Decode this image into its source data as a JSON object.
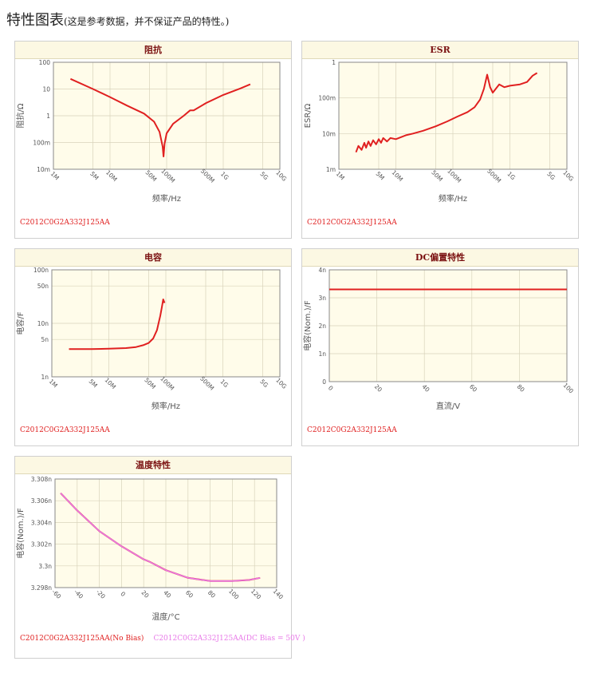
{
  "page": {
    "title": "特性图表",
    "subtitle": "(这是参考数据，并不保证产品的特性。)"
  },
  "chart_data": [
    {
      "id": "impedance",
      "type": "line",
      "title": "阻抗",
      "xlabel": "频率/Hz",
      "ylabel": "阻抗/Ω",
      "xscale": "log",
      "yscale": "log",
      "xlim": [
        1000000,
        10000000000
      ],
      "ylim": [
        0.01,
        100
      ],
      "xticks": [
        {
          "v": 1000000,
          "label": "1M"
        },
        {
          "v": 5000000,
          "label": "5M"
        },
        {
          "v": 10000000,
          "label": "10M"
        },
        {
          "v": 50000000,
          "label": "50M"
        },
        {
          "v": 100000000,
          "label": "100M"
        },
        {
          "v": 500000000,
          "label": "500M"
        },
        {
          "v": 1000000000,
          "label": "1G"
        },
        {
          "v": 5000000000,
          "label": "5G"
        },
        {
          "v": 10000000000,
          "label": "10G"
        }
      ],
      "yticks": [
        {
          "v": 100,
          "label": "100"
        },
        {
          "v": 10,
          "label": "10"
        },
        {
          "v": 1,
          "label": "1"
        },
        {
          "v": 0.1,
          "label": "100m"
        },
        {
          "v": 0.01,
          "label": "10m"
        }
      ],
      "grid": true,
      "series": [
        {
          "name": "C2012C0G2A332J125AA",
          "color": "#e02020",
          "x": [
            2000000,
            5000000,
            10000000,
            20000000,
            40000000,
            60000000,
            75000000,
            85000000,
            88000000,
            92000000,
            100000000,
            130000000,
            200000000,
            260000000,
            300000000,
            500000000,
            1000000000,
            2000000000,
            3000000000
          ],
          "y": [
            24,
            10,
            5,
            2.4,
            1.2,
            0.6,
            0.25,
            0.07,
            0.03,
            0.09,
            0.22,
            0.5,
            1.0,
            1.6,
            1.6,
            3.0,
            6.0,
            10.5,
            15
          ]
        }
      ],
      "legend": [
        {
          "text": "C2012C0G2A332J125AA",
          "color": "#e02020"
        }
      ]
    },
    {
      "id": "esr",
      "type": "line",
      "title": "ESR",
      "xlabel": "频率/Hz",
      "ylabel": "ESR/Ω",
      "xscale": "log",
      "yscale": "log",
      "xlim": [
        1000000,
        10000000000
      ],
      "ylim": [
        0.001,
        1
      ],
      "xticks": [
        {
          "v": 1000000,
          "label": "1M"
        },
        {
          "v": 5000000,
          "label": "5M"
        },
        {
          "v": 10000000,
          "label": "10M"
        },
        {
          "v": 50000000,
          "label": "50M"
        },
        {
          "v": 100000000,
          "label": "100M"
        },
        {
          "v": 500000000,
          "label": "500M"
        },
        {
          "v": 1000000000,
          "label": "1G"
        },
        {
          "v": 5000000000,
          "label": "5G"
        },
        {
          "v": 10000000000,
          "label": "10G"
        }
      ],
      "yticks": [
        {
          "v": 1,
          "label": "1"
        },
        {
          "v": 0.1,
          "label": "100m"
        },
        {
          "v": 0.01,
          "label": "10m"
        },
        {
          "v": 0.001,
          "label": "1m"
        }
      ],
      "grid": true,
      "series": [
        {
          "name": "C2012C0G2A332J125AA",
          "color": "#e02020",
          "x": [
            2000000,
            2200000,
            2500000,
            2800000,
            3000000,
            3300000,
            3600000,
            4000000,
            4500000,
            5000000,
            5500000,
            6000000,
            7000000,
            8000000,
            10000000,
            15000000,
            20000000,
            30000000,
            50000000,
            80000000,
            120000000,
            180000000,
            240000000,
            300000000,
            350000000,
            400000000,
            450000000,
            500000000,
            550000000,
            650000000,
            800000000,
            1000000000,
            1500000000,
            2000000000,
            2500000000,
            3000000000
          ],
          "y": [
            0.003,
            0.0045,
            0.0035,
            0.0055,
            0.004,
            0.006,
            0.0045,
            0.0065,
            0.005,
            0.007,
            0.0055,
            0.0075,
            0.006,
            0.0075,
            0.007,
            0.009,
            0.01,
            0.012,
            0.016,
            0.022,
            0.03,
            0.04,
            0.055,
            0.09,
            0.18,
            0.45,
            0.2,
            0.14,
            0.17,
            0.24,
            0.2,
            0.22,
            0.24,
            0.28,
            0.42,
            0.5
          ]
        }
      ],
      "legend": [
        {
          "text": "C2012C0G2A332J125AA",
          "color": "#e02020"
        }
      ]
    },
    {
      "id": "capacitance",
      "type": "line",
      "title": "电容",
      "xlabel": "频率/Hz",
      "ylabel": "电容/F",
      "xscale": "log",
      "yscale": "log",
      "xlim": [
        1000000,
        10000000000
      ],
      "ylim": [
        1e-09,
        1e-07
      ],
      "xticks": [
        {
          "v": 1000000,
          "label": "1M"
        },
        {
          "v": 5000000,
          "label": "5M"
        },
        {
          "v": 10000000,
          "label": "10M"
        },
        {
          "v": 50000000,
          "label": "50M"
        },
        {
          "v": 100000000,
          "label": "100M"
        },
        {
          "v": 500000000,
          "label": "500M"
        },
        {
          "v": 1000000000,
          "label": "1G"
        },
        {
          "v": 5000000000,
          "label": "5G"
        },
        {
          "v": 10000000000,
          "label": "10G"
        }
      ],
      "yticks": [
        {
          "v": 1e-07,
          "label": "100n"
        },
        {
          "v": 5e-08,
          "label": "50n"
        },
        {
          "v": 1e-08,
          "label": "10n"
        },
        {
          "v": 5e-09,
          "label": "5n"
        },
        {
          "v": 1e-09,
          "label": "1n"
        }
      ],
      "grid": true,
      "series": [
        {
          "name": "C2012C0G2A332J125AA",
          "color": "#e02020",
          "x": [
            2000000,
            5000000,
            10000000,
            20000000,
            30000000,
            40000000,
            50000000,
            60000000,
            70000000,
            80000000,
            85000000,
            90000000,
            95000000
          ],
          "y": [
            3.3e-09,
            3.3e-09,
            3.35e-09,
            3.45e-09,
            3.6e-09,
            3.9e-09,
            4.3e-09,
            5.2e-09,
            7.5e-09,
            1.4e-08,
            2e-08,
            2.8e-08,
            2.4e-08
          ]
        }
      ],
      "legend": [
        {
          "text": "C2012C0G2A332J125AA",
          "color": "#e02020"
        }
      ]
    },
    {
      "id": "dc_bias",
      "type": "line",
      "title": "DC偏置特性",
      "xlabel": "直流/V",
      "ylabel": "电容(Nom.)/F",
      "xscale": "linear",
      "yscale": "linear",
      "xlim": [
        0,
        100
      ],
      "ylim": [
        0,
        4e-09
      ],
      "xticks": [
        {
          "v": 0,
          "label": "0"
        },
        {
          "v": 20,
          "label": "20"
        },
        {
          "v": 40,
          "label": "40"
        },
        {
          "v": 60,
          "label": "60"
        },
        {
          "v": 80,
          "label": "80"
        },
        {
          "v": 100,
          "label": "100"
        }
      ],
      "yticks": [
        {
          "v": 4e-09,
          "label": "4n"
        },
        {
          "v": 3e-09,
          "label": "3n"
        },
        {
          "v": 2e-09,
          "label": "2n"
        },
        {
          "v": 1e-09,
          "label": "1n"
        },
        {
          "v": 0,
          "label": "0"
        }
      ],
      "grid": true,
      "series": [
        {
          "name": "C2012C0G2A332J125AA",
          "color": "#e02020",
          "x": [
            0,
            100
          ],
          "y": [
            3.3e-09,
            3.3e-09
          ]
        }
      ],
      "legend": [
        {
          "text": "C2012C0G2A332J125AA",
          "color": "#e02020"
        }
      ]
    },
    {
      "id": "temperature",
      "type": "line",
      "title": "温度特性",
      "xlabel": "温度/°C",
      "ylabel": "电容(Nom.)/F",
      "xscale": "linear",
      "yscale": "linear",
      "xlim": [
        -60,
        140
      ],
      "ylim": [
        3.298e-09,
        3.308e-09
      ],
      "xticks": [
        {
          "v": -60,
          "label": "-60"
        },
        {
          "v": -40,
          "label": "-40"
        },
        {
          "v": -20,
          "label": "-20"
        },
        {
          "v": 0,
          "label": "0"
        },
        {
          "v": 20,
          "label": "20"
        },
        {
          "v": 40,
          "label": "40"
        },
        {
          "v": 60,
          "label": "60"
        },
        {
          "v": 80,
          "label": "80"
        },
        {
          "v": 100,
          "label": "100"
        },
        {
          "v": 120,
          "label": "120"
        },
        {
          "v": 140,
          "label": "140"
        }
      ],
      "yticks": [
        {
          "v": 3.308e-09,
          "label": "3.308n"
        },
        {
          "v": 3.306e-09,
          "label": "3.306n"
        },
        {
          "v": 3.304e-09,
          "label": "3.304n"
        },
        {
          "v": 3.302e-09,
          "label": "3.302n"
        },
        {
          "v": 3.3e-09,
          "label": "3.3n"
        },
        {
          "v": 3.298e-09,
          "label": "3.298n"
        }
      ],
      "grid": true,
      "series": [
        {
          "name": "C2012C0G2A332J125AA(No Bias)",
          "color": "#e02020",
          "x": [
            -55,
            -40,
            -20,
            0,
            20,
            25,
            40,
            60,
            80,
            100,
            115,
            125
          ],
          "y": [
            3.3067e-09,
            3.3051e-09,
            3.3032e-09,
            3.3018e-09,
            3.3006e-09,
            3.3004e-09,
            3.2996e-09,
            3.2989e-09,
            3.2986e-09,
            3.2986e-09,
            3.2987e-09,
            3.2989e-09
          ]
        },
        {
          "name": "C2012C0G2A332J125AA(DC Bias = 50V )",
          "color": "#e87ae8",
          "x": [
            -55,
            -40,
            -20,
            0,
            20,
            25,
            40,
            60,
            80,
            100,
            115,
            125
          ],
          "y": [
            3.3067e-09,
            3.3051e-09,
            3.3032e-09,
            3.3018e-09,
            3.3006e-09,
            3.3004e-09,
            3.2996e-09,
            3.2989e-09,
            3.2986e-09,
            3.2986e-09,
            3.2987e-09,
            3.2989e-09
          ]
        }
      ],
      "legend": [
        {
          "text": "C2012C0G2A332J125AA(No Bias)",
          "color": "#e02020"
        },
        {
          "text": "C2012C0G2A332J125AA(DC Bias = 50V )",
          "color": "#e87ae8"
        }
      ]
    }
  ]
}
